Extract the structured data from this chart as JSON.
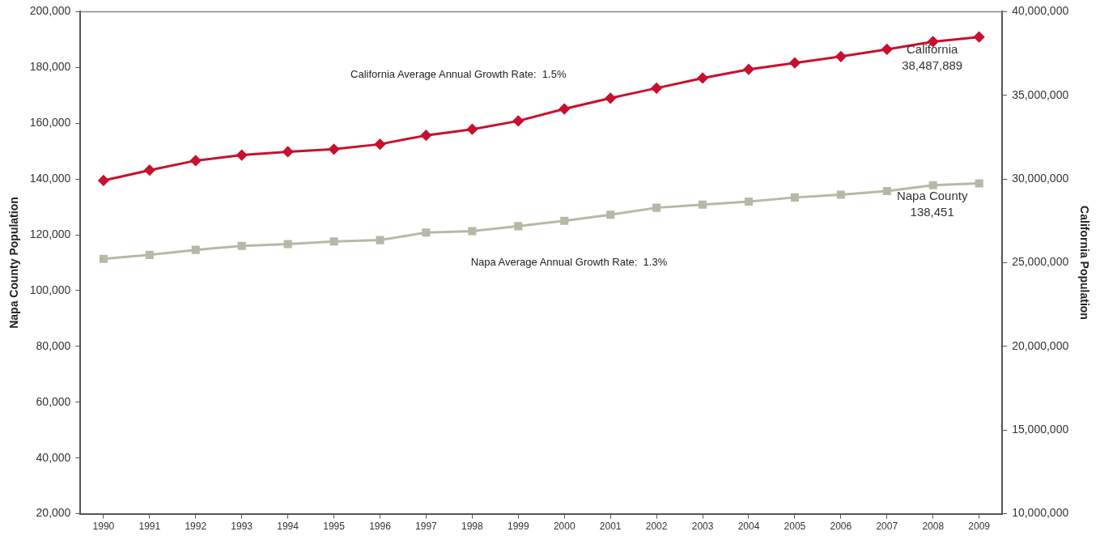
{
  "chart_data": {
    "type": "line",
    "ylabel": "Napa County Population",
    "y2label": "California Population",
    "categories": [
      "1990",
      "1991",
      "1992",
      "1993",
      "1994",
      "1995",
      "1996",
      "1997",
      "1998",
      "1999",
      "2000",
      "2001",
      "2002",
      "2003",
      "2004",
      "2005",
      "2006",
      "2007",
      "2008",
      "2009"
    ],
    "series": [
      {
        "name": "California",
        "color": "#c8102e",
        "axis": "y2",
        "marker": "diamond",
        "values": [
          29910000,
          30530000,
          31100000,
          31430000,
          31630000,
          31780000,
          32080000,
          32610000,
          32970000,
          33470000,
          34190000,
          34830000,
          35430000,
          36030000,
          36550000,
          36940000,
          37320000,
          37750000,
          38210000,
          38487889
        ],
        "value_labels": [
          null,
          null,
          null,
          null,
          null,
          null,
          null,
          null,
          null,
          null,
          null,
          null,
          null,
          null,
          null,
          null,
          null,
          null,
          null,
          "38,487,889"
        ]
      },
      {
        "name": "Napa County",
        "color": "#b8b8a8",
        "axis": "y",
        "marker": "square",
        "values": [
          111400,
          112800,
          114600,
          116000,
          116700,
          117600,
          118100,
          120800,
          121300,
          123100,
          125000,
          127200,
          129700,
          130800,
          131900,
          133400,
          134400,
          135700,
          137800,
          138451
        ],
        "value_labels": [
          null,
          null,
          null,
          null,
          null,
          null,
          null,
          null,
          null,
          null,
          null,
          null,
          null,
          null,
          null,
          null,
          null,
          null,
          null,
          "138,451"
        ]
      }
    ],
    "ylim": [
      20000,
      200000
    ],
    "yticks": [
      {
        "value": 20000,
        "label": "20,000"
      },
      {
        "value": 40000,
        "label": "40,000"
      },
      {
        "value": 60000,
        "label": "60,000"
      },
      {
        "value": 80000,
        "label": "80,000"
      },
      {
        "value": 100000,
        "label": "100,000"
      },
      {
        "value": 120000,
        "label": "120,000"
      },
      {
        "value": 140000,
        "label": "140,000"
      },
      {
        "value": 160000,
        "label": "160,000"
      },
      {
        "value": 180000,
        "label": "180,000"
      },
      {
        "value": 200000,
        "label": "200,000"
      }
    ],
    "y2lim": [
      10000000,
      40000000
    ],
    "y2ticks": [
      {
        "value": 10000000,
        "label": "10,000,000"
      },
      {
        "value": 15000000,
        "label": "15,000,000"
      },
      {
        "value": 20000000,
        "label": "20,000,000"
      },
      {
        "value": 25000000,
        "label": "25,000,000"
      },
      {
        "value": 30000000,
        "label": "30,000,000"
      },
      {
        "value": 35000000,
        "label": "35,000,000"
      },
      {
        "value": 40000000,
        "label": "40,000,000"
      }
    ],
    "annotations": [
      "California Average Annual Growth Rate:  1.5%",
      "Napa Average Annual Growth Rate:  1.3%"
    ],
    "grid": false,
    "legend": false
  }
}
